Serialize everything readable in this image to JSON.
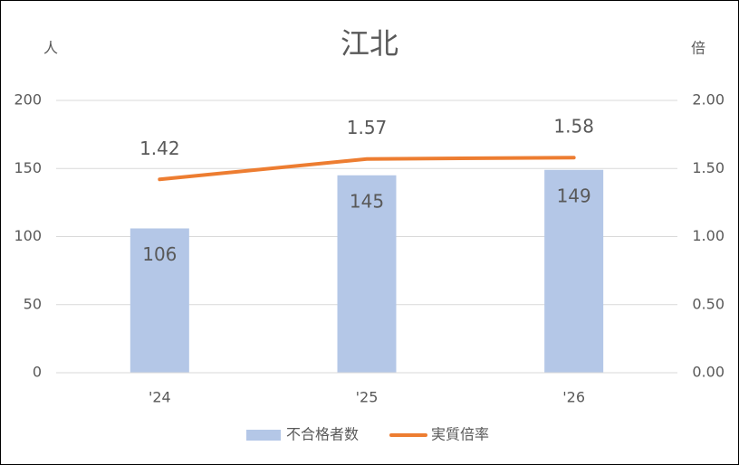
{
  "chart_data": {
    "type": "bar",
    "title": "江北",
    "y_label": "人",
    "y2_label": "倍",
    "categories": [
      "'24",
      "'25",
      "'26"
    ],
    "series": [
      {
        "name": "不合格者数",
        "type": "bar",
        "color": "#b4c7e7",
        "values": [
          106,
          145,
          149
        ]
      },
      {
        "name": "実質倍率",
        "type": "line",
        "axis": "y2",
        "color": "#ed7d31",
        "values": [
          1.42,
          1.57,
          1.58
        ]
      }
    ],
    "ylim": [
      0,
      200
    ],
    "yticks": [
      0,
      50,
      100,
      150,
      200
    ],
    "y2lim": [
      0,
      2
    ],
    "y2ticks": [
      {
        "value": 0,
        "label": "0.00"
      },
      {
        "value": 0.5,
        "label": "0.50"
      },
      {
        "value": 1,
        "label": "1.00"
      },
      {
        "value": 1.5,
        "label": "1.50"
      },
      {
        "value": 2,
        "label": "2.00"
      }
    ],
    "grid": true,
    "legend": "bottom"
  }
}
